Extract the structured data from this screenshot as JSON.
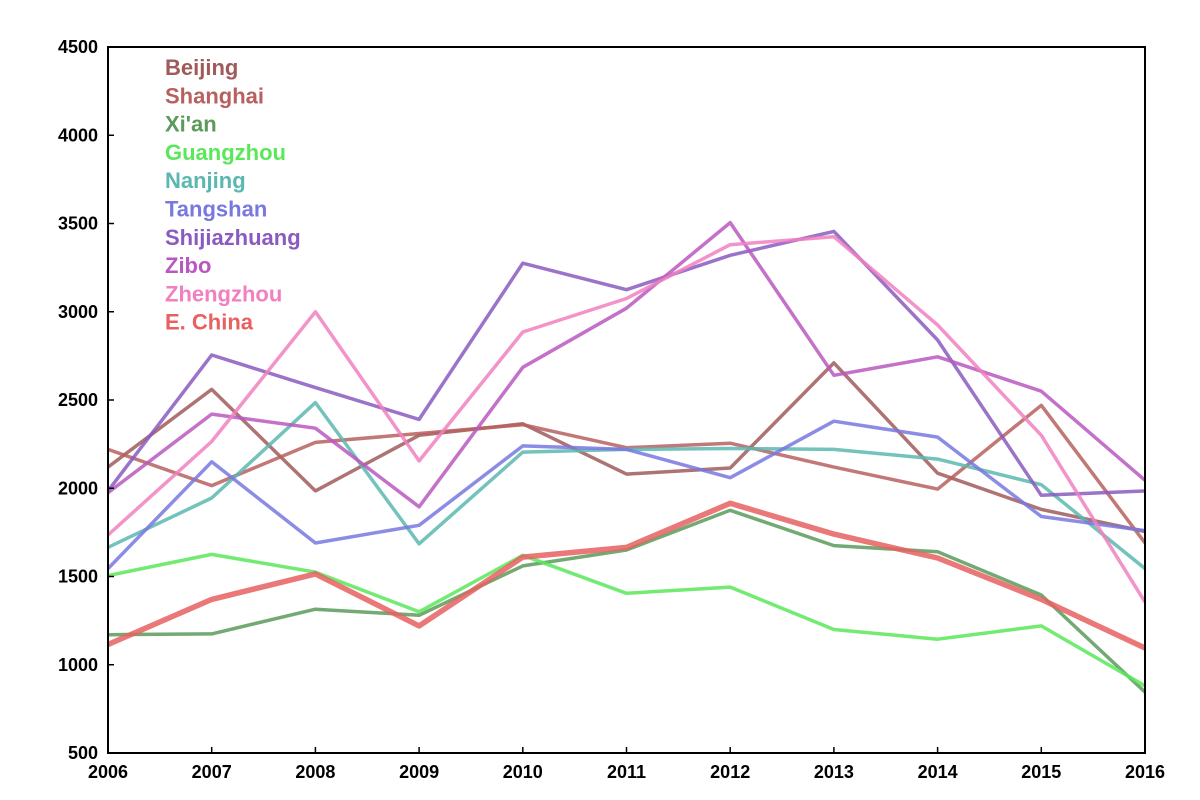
{
  "chart_data": {
    "type": "line",
    "title": "",
    "xlabel": "",
    "ylabel": "",
    "x": [
      2006,
      2007,
      2008,
      2009,
      2010,
      2011,
      2012,
      2013,
      2014,
      2015,
      2016
    ],
    "xticks": [
      "2006",
      "2007",
      "2008",
      "2009",
      "2010",
      "2011",
      "2012",
      "2013",
      "2014",
      "2015",
      "2016"
    ],
    "ylim": [
      500,
      4500
    ],
    "yticks": [
      "500",
      "1000",
      "1500",
      "2000",
      "2500",
      "3000",
      "3500",
      "4000",
      "4500"
    ],
    "grid": false,
    "legend_placement": "top-left",
    "series": [
      {
        "name": "Beijing",
        "color": "#a05a5a",
        "width": 3.5,
        "values": [
          2120,
          2560,
          1985,
          2300,
          2365,
          2080,
          2115,
          2710,
          2085,
          1880,
          1755
        ]
      },
      {
        "name": "Shanghai",
        "color": "#b86060",
        "width": 3.5,
        "values": [
          2220,
          2015,
          2260,
          2310,
          2360,
          2230,
          2255,
          2120,
          1995,
          2470,
          1690
        ]
      },
      {
        "name": "Xi'an",
        "color": "#5a9a5a",
        "width": 3.5,
        "values": [
          1170,
          1175,
          1315,
          1280,
          1560,
          1650,
          1875,
          1675,
          1640,
          1395,
          845
        ]
      },
      {
        "name": "Guangzhou",
        "color": "#5ae85a",
        "width": 3.5,
        "values": [
          1505,
          1625,
          1525,
          1300,
          1620,
          1405,
          1440,
          1200,
          1145,
          1220,
          880
        ]
      },
      {
        "name": "Nanjing",
        "color": "#5ab8b0",
        "width": 3.5,
        "values": [
          1665,
          1945,
          2485,
          1685,
          2205,
          2220,
          2225,
          2220,
          2165,
          2020,
          1545
        ]
      },
      {
        "name": "Tangshan",
        "color": "#7878e0",
        "width": 3.5,
        "values": [
          1545,
          2150,
          1690,
          1790,
          2240,
          2220,
          2060,
          2380,
          2290,
          1840,
          1760
        ]
      },
      {
        "name": "Shijiazhuang",
        "color": "#8a5ac0",
        "width": 3.5,
        "values": [
          1985,
          2755,
          2570,
          2390,
          3275,
          3125,
          3320,
          3455,
          2840,
          1960,
          1985
        ]
      },
      {
        "name": "Zibo",
        "color": "#b858c0",
        "width": 3.5,
        "values": [
          1975,
          2420,
          2340,
          1895,
          2685,
          3020,
          3505,
          2640,
          2745,
          2550,
          2045
        ]
      },
      {
        "name": "Zhengzhou",
        "color": "#f080c0",
        "width": 3.5,
        "values": [
          1735,
          2265,
          3000,
          2155,
          2885,
          3075,
          3380,
          3425,
          2925,
          2300,
          1355
        ]
      },
      {
        "name": "E. China",
        "color": "#e86060",
        "width": 5.5,
        "values": [
          1115,
          1370,
          1515,
          1220,
          1610,
          1665,
          1915,
          1740,
          1605,
          1370,
          1095
        ]
      }
    ]
  }
}
